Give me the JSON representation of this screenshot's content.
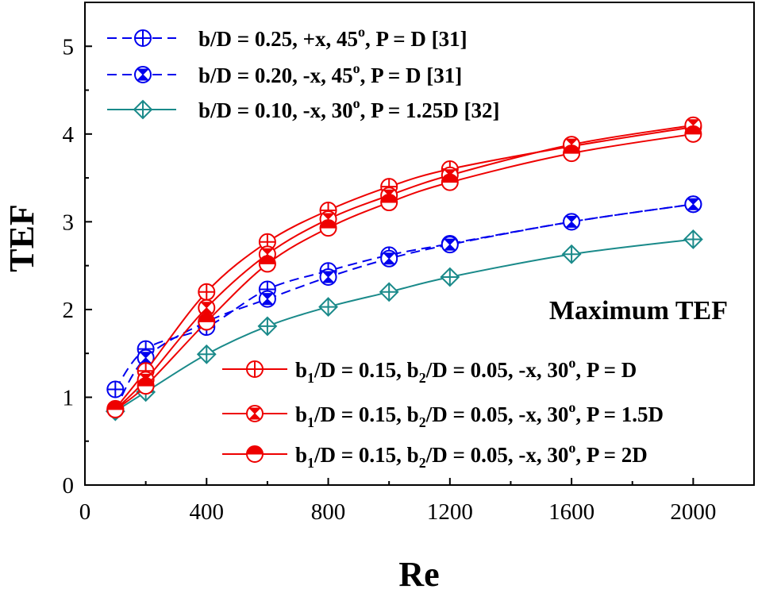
{
  "chart_data": {
    "type": "line",
    "title": "",
    "xlabel": "Re",
    "ylabel": "TEF",
    "xlim": [
      0,
      2200
    ],
    "ylim": [
      0,
      5.5
    ],
    "xticks": [
      0,
      400,
      800,
      1200,
      1600,
      2000
    ],
    "yticks": [
      0,
      1,
      2,
      3,
      4,
      5
    ],
    "xtick_labels": [
      "0",
      "400",
      "800",
      "1200",
      "1600",
      "2000"
    ],
    "ytick_labels": [
      "0",
      "1",
      "2",
      "3",
      "4",
      "5"
    ],
    "annotation": "Maximum TEF",
    "series": [
      {
        "name": "b/D = 0.25, +x, 45o, P = D [31]",
        "legend": {
          "main": "b/D = 0.25, +x, 45",
          "sup": "o",
          "tail": ", P = D [31]"
        },
        "color": "#0000ee",
        "marker": "circle-plus",
        "dash": true,
        "x": [
          100,
          200,
          400,
          600,
          800,
          1000,
          1200,
          1600,
          2000
        ],
        "y": [
          1.09,
          1.55,
          1.8,
          2.23,
          2.44,
          2.62,
          2.75,
          3.0,
          3.2
        ]
      },
      {
        "name": "b/D = 0.20, -x, 45o, P = D [31]",
        "legend": {
          "main": "b/D = 0.20, -x, 45",
          "sup": "o",
          "tail": ", P = D [31]"
        },
        "color": "#0000ee",
        "marker": "circle-x",
        "dash": true,
        "x": [
          100,
          200,
          400,
          600,
          800,
          1000,
          1200,
          1600,
          2000
        ],
        "y": [
          0.86,
          1.45,
          1.86,
          2.12,
          2.37,
          2.58,
          2.74,
          3.0,
          3.2
        ]
      },
      {
        "name": "b/D = 0.10, -x, 30o, P = 1.25D [32]",
        "legend": {
          "main": "b/D = 0.10, -x, 30",
          "sup": "o",
          "tail": ", P = 1.25D [32]"
        },
        "color": "#1a8a8a",
        "marker": "diamond-plus",
        "dash": false,
        "x": [
          100,
          200,
          400,
          600,
          800,
          1000,
          1200,
          1600,
          2000
        ],
        "y": [
          0.84,
          1.06,
          1.49,
          1.81,
          2.03,
          2.2,
          2.37,
          2.63,
          2.8
        ]
      },
      {
        "name": "b1/D = 0.15, b2/D = 0.05, -x, 30o, P = D",
        "legend": {
          "main": "b",
          "sub1": "1",
          "mid": "/D = 0.15, b",
          "sub2": "2",
          "mid2": "/D = 0.05, -x, 30",
          "sup": "o",
          "tail": ", P = D"
        },
        "color": "#ee0000",
        "marker": "circle-plus",
        "dash": false,
        "x": [
          100,
          200,
          400,
          600,
          800,
          1000,
          1200,
          1600,
          2000
        ],
        "y": [
          0.87,
          1.3,
          2.2,
          2.77,
          3.13,
          3.4,
          3.6,
          3.86,
          4.08
        ]
      },
      {
        "name": "b1/D = 0.15, b2/D = 0.05, -x, 30o, P = 1.5D",
        "legend": {
          "main": "b",
          "sub1": "1",
          "mid": "/D = 0.15, b",
          "sub2": "2",
          "mid2": "/D = 0.05, -x, 30",
          "sup": "o",
          "tail": ", P = 1.5D"
        },
        "color": "#ee0000",
        "marker": "circle-x",
        "dash": false,
        "x": [
          100,
          200,
          400,
          600,
          800,
          1000,
          1200,
          1600,
          2000
        ],
        "y": [
          0.86,
          1.2,
          2.02,
          2.63,
          3.03,
          3.3,
          3.53,
          3.88,
          4.1
        ]
      },
      {
        "name": "b1/D = 0.15, b2/D = 0.05, -x, 30o, P = 2D",
        "legend": {
          "main": "b",
          "sub1": "1",
          "mid": "/D = 0.15, b",
          "sub2": "2",
          "mid2": "/D = 0.05, -x, 30",
          "sup": "o",
          "tail": ", P = 2D"
        },
        "color": "#ee0000",
        "marker": "circle-half",
        "dash": false,
        "x": [
          100,
          200,
          400,
          600,
          800,
          1000,
          1200,
          1600,
          2000
        ],
        "y": [
          0.86,
          1.13,
          1.86,
          2.52,
          2.93,
          3.22,
          3.45,
          3.78,
          4.0
        ]
      }
    ]
  }
}
